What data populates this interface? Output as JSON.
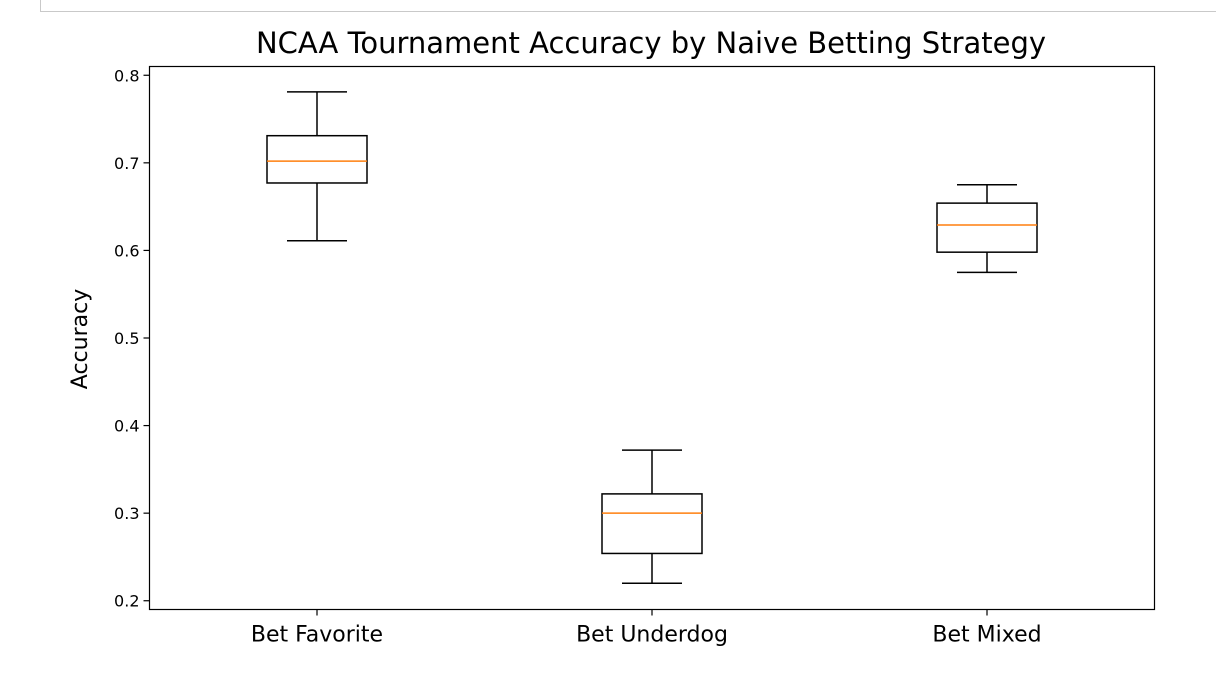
{
  "chart_data": {
    "type": "box",
    "title": "NCAA Tournament Accuracy by Naive Betting Strategy",
    "xlabel": "",
    "ylabel": "Accuracy",
    "ylim": [
      0.19,
      0.81
    ],
    "yticks": [
      "0.2",
      "0.3",
      "0.4",
      "0.5",
      "0.6",
      "0.7",
      "0.8"
    ],
    "categories": [
      "Bet Favorite",
      "Bet Underdog",
      "Bet Mixed"
    ],
    "boxes": [
      {
        "whisker_low": 0.611,
        "q1": 0.677,
        "median": 0.702,
        "q3": 0.731,
        "whisker_high": 0.781
      },
      {
        "whisker_low": 0.22,
        "q1": 0.254,
        "median": 0.3,
        "q3": 0.322,
        "whisker_high": 0.372
      },
      {
        "whisker_low": 0.575,
        "q1": 0.598,
        "median": 0.629,
        "q3": 0.654,
        "whisker_high": 0.675
      }
    ],
    "grid": false,
    "colors": {
      "box": "#000000",
      "median": "#ff7f0e"
    }
  }
}
